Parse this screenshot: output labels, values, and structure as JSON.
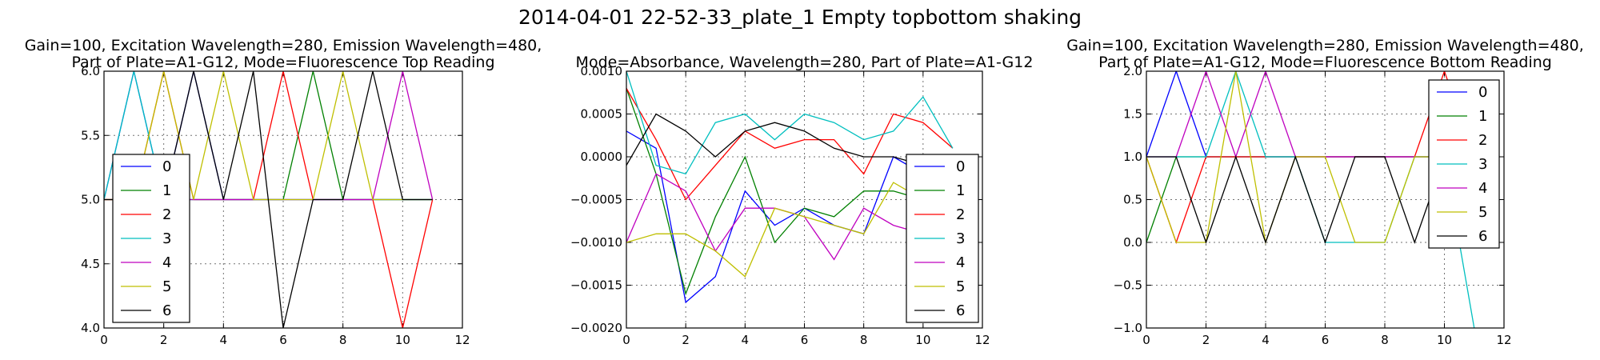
{
  "figure": {
    "title": "2014-04-01 22-52-33_plate_1 Empty topbottom shaking"
  },
  "chart_data": [
    {
      "type": "line",
      "title_lines": [
        "Gain=100, Excitation Wavelength=280, Emission Wavelength=480,",
        "Part of Plate=A1-G12, Mode=Fluorescence Top Reading"
      ],
      "xlim": [
        0,
        12
      ],
      "ylim": [
        4.0,
        6.0
      ],
      "xticks": [
        "0",
        "2",
        "4",
        "6",
        "8",
        "10",
        "12"
      ],
      "yticks": [
        "4.0",
        "4.5",
        "5.0",
        "5.5",
        "6.0"
      ],
      "grid": true,
      "legend_location": "lower-left",
      "x": [
        0,
        1,
        2,
        3,
        4,
        5,
        6,
        7,
        8,
        9,
        10,
        11
      ],
      "series": [
        {
          "name": "0",
          "color": "#0000ff",
          "values": [
            5,
            6,
            5,
            6,
            5,
            5,
            5,
            5,
            5,
            5,
            5,
            5
          ]
        },
        {
          "name": "1",
          "color": "#008000",
          "values": [
            5,
            5,
            5,
            5,
            5,
            5,
            5,
            6,
            5,
            5,
            5,
            5
          ]
        },
        {
          "name": "2",
          "color": "#ff0000",
          "values": [
            5,
            5,
            6,
            5,
            5,
            5,
            6,
            5,
            5,
            5,
            4,
            5
          ]
        },
        {
          "name": "3",
          "color": "#00bfbf",
          "values": [
            5,
            6,
            5,
            5,
            5,
            5,
            5,
            5,
            5,
            5,
            5,
            5
          ]
        },
        {
          "name": "4",
          "color": "#bf00bf",
          "values": [
            5,
            5,
            5,
            5,
            5,
            5,
            5,
            5,
            5,
            5,
            6,
            5
          ]
        },
        {
          "name": "5",
          "color": "#bfbf00",
          "values": [
            5,
            5,
            6,
            5,
            6,
            5,
            5,
            5,
            6,
            5,
            5,
            5
          ]
        },
        {
          "name": "6",
          "color": "#000000",
          "values": [
            5,
            5,
            5,
            6,
            5,
            6,
            4,
            5,
            5,
            6,
            5,
            5
          ]
        }
      ]
    },
    {
      "type": "line",
      "title_lines": [
        "Mode=Absorbance, Wavelength=280, Part of Plate=A1-G12"
      ],
      "xlim": [
        0,
        12
      ],
      "ylim": [
        -0.002,
        0.001
      ],
      "xticks": [
        "0",
        "2",
        "4",
        "6",
        "8",
        "10",
        "12"
      ],
      "yticks": [
        "−0.0020",
        "−0.0015",
        "−0.0010",
        "−0.0005",
        "0.0000",
        "0.0005",
        "0.0010"
      ],
      "grid": true,
      "legend_location": "lower-right",
      "x": [
        0,
        1,
        2,
        3,
        4,
        5,
        6,
        7,
        8,
        9,
        10,
        11
      ],
      "series": [
        {
          "name": "0",
          "color": "#0000ff",
          "values": [
            0.0003,
            0.0001,
            -0.0017,
            -0.0014,
            -0.0004,
            -0.0008,
            -0.0006,
            -0.0008,
            -0.0009,
            0.0,
            -0.0002,
            -0.0005
          ]
        },
        {
          "name": "1",
          "color": "#008000",
          "values": [
            0.0008,
            -0.0002,
            -0.0016,
            -0.0007,
            0.0,
            -0.001,
            -0.0006,
            -0.0007,
            -0.0004,
            -0.0004,
            -0.0005,
            -0.0005
          ]
        },
        {
          "name": "2",
          "color": "#ff0000",
          "values": [
            0.0008,
            0.0002,
            -0.0005,
            -0.0001,
            0.0003,
            0.0001,
            0.0002,
            0.0002,
            -0.0002,
            0.0005,
            0.0004,
            0.0001
          ]
        },
        {
          "name": "3",
          "color": "#00bfbf",
          "values": [
            0.001,
            -0.0001,
            -0.0002,
            0.0004,
            0.0005,
            0.0002,
            0.0005,
            0.0004,
            0.0002,
            0.0003,
            0.0007,
            0.0001
          ]
        },
        {
          "name": "4",
          "color": "#bf00bf",
          "values": [
            -0.001,
            -0.0002,
            -0.0004,
            -0.0011,
            -0.0006,
            -0.0006,
            -0.0007,
            -0.0012,
            -0.0006,
            -0.0008,
            -0.0009,
            -0.0008
          ]
        },
        {
          "name": "5",
          "color": "#bfbf00",
          "values": [
            -0.001,
            -0.0009,
            -0.0009,
            -0.0011,
            -0.0014,
            -0.0006,
            -0.0007,
            -0.0008,
            -0.0009,
            -0.0003,
            -0.0005,
            -0.0005
          ]
        },
        {
          "name": "6",
          "color": "#000000",
          "values": [
            -0.0001,
            0.0005,
            0.0003,
            0.0,
            0.0003,
            0.0004,
            0.0003,
            0.0001,
            0.0,
            0.0,
            -0.0001,
            -0.0001
          ]
        }
      ]
    },
    {
      "type": "line",
      "title_lines": [
        "Gain=100, Excitation Wavelength=280, Emission Wavelength=480,",
        "Part of Plate=A1-G12, Mode=Fluorescence Bottom Reading"
      ],
      "xlim": [
        0,
        12
      ],
      "ylim": [
        -1.0,
        2.0
      ],
      "xticks": [
        "0",
        "2",
        "4",
        "6",
        "8",
        "10",
        "12"
      ],
      "yticks": [
        "−1.0",
        "−0.5",
        "0.0",
        "0.5",
        "1.0",
        "1.5",
        "2.0"
      ],
      "grid": true,
      "legend_location": "upper-right",
      "x": [
        0,
        1,
        2,
        3,
        4,
        5,
        6,
        7,
        8,
        9,
        10,
        11
      ],
      "series": [
        {
          "name": "0",
          "color": "#0000ff",
          "values": [
            1,
            2,
            1,
            1,
            1,
            1,
            1,
            1,
            1,
            1,
            1,
            1
          ]
        },
        {
          "name": "1",
          "color": "#008000",
          "values": [
            0,
            1,
            1,
            1,
            1,
            1,
            1,
            1,
            1,
            1,
            1,
            1
          ]
        },
        {
          "name": "2",
          "color": "#ff0000",
          "values": [
            1,
            0,
            1,
            1,
            1,
            1,
            1,
            1,
            1,
            1,
            2,
            1
          ]
        },
        {
          "name": "3",
          "color": "#00bfbf",
          "values": [
            1,
            1,
            1,
            2,
            1,
            1,
            0,
            0,
            0,
            1,
            1,
            -1
          ]
        },
        {
          "name": "4",
          "color": "#bf00bf",
          "values": [
            1,
            1,
            2,
            1,
            2,
            1,
            1,
            1,
            1,
            1,
            1,
            1
          ]
        },
        {
          "name": "5",
          "color": "#bfbf00",
          "values": [
            1,
            0,
            0,
            2,
            0,
            1,
            1,
            0,
            0,
            1,
            1,
            1
          ]
        },
        {
          "name": "6",
          "color": "#000000",
          "values": [
            1,
            1,
            0,
            1,
            0,
            1,
            0,
            1,
            1,
            0,
            1,
            1
          ]
        }
      ]
    }
  ]
}
